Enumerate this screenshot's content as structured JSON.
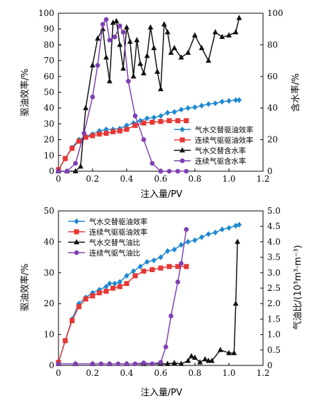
{
  "chart_data": [
    {
      "type": "line",
      "xlabel": "注入量/PV",
      "ylabel_left": "驱油效率/%",
      "ylabel_right": "含水率/%",
      "xlim": [
        0,
        1.2
      ],
      "xticks": [
        "0",
        "0.2",
        "0.4",
        "0.6",
        "0.8",
        "1.0",
        "1.2"
      ],
      "ylim_left": [
        0,
        100
      ],
      "yticks_left": [
        "0",
        "10",
        "20",
        "30",
        "40",
        "50",
        "60",
        "70",
        "80",
        "90",
        "100"
      ],
      "ylim_right": [
        0,
        100
      ],
      "yticks_right": [
        "0",
        "20",
        "40",
        "60",
        "80",
        "100"
      ],
      "legend_position": "bottom-right",
      "series": [
        {
          "name": "气水交替驱油效率",
          "axis": "left",
          "color": "#1e88d0",
          "marker": "diamond",
          "x": [
            0,
            0.04,
            0.08,
            0.12,
            0.16,
            0.2,
            0.24,
            0.28,
            0.32,
            0.36,
            0.4,
            0.44,
            0.48,
            0.52,
            0.56,
            0.6,
            0.64,
            0.68,
            0.72,
            0.76,
            0.8,
            0.84,
            0.88,
            0.92,
            0.96,
            1.0,
            1.04,
            1.06
          ],
          "y": [
            1,
            8,
            15,
            20,
            22,
            23.5,
            25.5,
            26.5,
            26.5,
            27,
            29,
            30.5,
            32,
            33.5,
            34,
            35,
            37,
            37.5,
            39,
            40,
            40.5,
            41.5,
            42.5,
            43,
            44,
            44.5,
            45,
            45
          ]
        },
        {
          "name": "连续气驱驱油效率",
          "axis": "left",
          "color": "#e53935",
          "marker": "square",
          "x": [
            0,
            0.04,
            0.08,
            0.12,
            0.16,
            0.2,
            0.24,
            0.28,
            0.32,
            0.36,
            0.4,
            0.45,
            0.5,
            0.55,
            0.6,
            0.65,
            0.7,
            0.75
          ],
          "y": [
            1,
            8,
            14.5,
            19,
            21.5,
            22.5,
            23.5,
            24,
            25,
            25.5,
            26.5,
            29,
            30.5,
            31,
            31.5,
            32,
            32,
            32
          ]
        },
        {
          "name": "气水交替含水率",
          "axis": "right",
          "color": "#111111",
          "marker": "triangle",
          "x": [
            0,
            0.05,
            0.1,
            0.13,
            0.16,
            0.2,
            0.23,
            0.26,
            0.28,
            0.3,
            0.32,
            0.34,
            0.36,
            0.38,
            0.4,
            0.42,
            0.44,
            0.46,
            0.48,
            0.5,
            0.52,
            0.54,
            0.56,
            0.58,
            0.6,
            0.62,
            0.64,
            0.66,
            0.68,
            0.72,
            0.76,
            0.8,
            0.84,
            0.88,
            0.92,
            0.96,
            1.0,
            1.04,
            1.06
          ],
          "y": [
            0,
            0,
            0,
            3,
            40,
            67,
            84,
            90,
            72,
            57,
            94,
            95,
            80,
            65,
            91,
            82,
            60,
            83,
            68,
            62,
            73,
            91,
            78,
            63,
            52,
            93,
            88,
            75,
            78,
            72,
            75,
            86,
            78,
            70,
            88,
            85,
            86,
            88,
            97
          ]
        },
        {
          "name": "连续气驱含水率",
          "axis": "right",
          "color": "#7e3fb2",
          "marker": "circle",
          "x": [
            0,
            0.05,
            0.1,
            0.15,
            0.2,
            0.23,
            0.26,
            0.28,
            0.3,
            0.33,
            0.36,
            0.38,
            0.41,
            0.45,
            0.5,
            0.55,
            0.6,
            0.65,
            0.7,
            0.75
          ],
          "y": [
            0,
            0,
            5,
            24,
            47,
            67,
            93,
            96,
            83,
            85,
            92,
            88,
            57,
            35,
            20,
            5,
            0,
            0,
            0,
            0
          ]
        }
      ]
    },
    {
      "type": "line",
      "xlabel": "注入量/PV",
      "ylabel_left": "驱油效率/%",
      "ylabel_right": "气油比/(10³m³·m⁻³)",
      "xlim": [
        0,
        1.2
      ],
      "xticks": [
        "0",
        "0.2",
        "0.4",
        "0.6",
        "0.8",
        "1.0",
        "1.2"
      ],
      "ylim_left": [
        0,
        50
      ],
      "yticks_left": [
        "0",
        "10",
        "20",
        "30",
        "40",
        "50"
      ],
      "ylim_right": [
        0,
        5
      ],
      "yticks_right": [
        "0",
        "0.5",
        "1.0",
        "1.5",
        "2.0",
        "2.5",
        "3.0",
        "3.5",
        "4.0",
        "4.5",
        "5.0"
      ],
      "legend_position": "top-left",
      "series": [
        {
          "name": "气水交替驱油效率",
          "axis": "left",
          "color": "#1e88d0",
          "marker": "diamond",
          "x": [
            0,
            0.04,
            0.08,
            0.12,
            0.16,
            0.2,
            0.24,
            0.28,
            0.3,
            0.33,
            0.36,
            0.4,
            0.44,
            0.48,
            0.52,
            0.56,
            0.6,
            0.64,
            0.68,
            0.72,
            0.76,
            0.8,
            0.84,
            0.88,
            0.92,
            0.96,
            1.0,
            1.04,
            1.06
          ],
          "y": [
            1,
            8,
            15,
            20,
            22,
            23.5,
            24.5,
            25.5,
            26.5,
            26.5,
            27,
            29,
            30.5,
            32,
            33.5,
            34,
            35,
            37,
            37.5,
            39,
            40,
            40.5,
            41.5,
            42.5,
            43,
            44,
            44.5,
            45.2,
            45.5
          ]
        },
        {
          "name": "连续气驱驱油效率",
          "axis": "left",
          "color": "#e53935",
          "marker": "square",
          "x": [
            0,
            0.04,
            0.08,
            0.12,
            0.16,
            0.2,
            0.24,
            0.28,
            0.32,
            0.36,
            0.4,
            0.45,
            0.5,
            0.55,
            0.6,
            0.65,
            0.7,
            0.75
          ],
          "y": [
            1,
            8,
            14.5,
            19,
            21.5,
            22.5,
            23.5,
            24,
            25,
            25.5,
            26.5,
            29,
            30.5,
            31,
            31.5,
            32,
            32,
            32
          ]
        },
        {
          "name": "气水交替气油比",
          "axis": "right",
          "color": "#111111",
          "marker": "triangle",
          "x": [
            0,
            0.1,
            0.2,
            0.3,
            0.4,
            0.5,
            0.6,
            0.64,
            0.68,
            0.72,
            0.76,
            0.78,
            0.8,
            0.83,
            0.86,
            0.88,
            0.9,
            0.95,
            1.0,
            1.03,
            1.04,
            1.05
          ],
          "y": [
            0.05,
            0.05,
            0.05,
            0.05,
            0.05,
            0.05,
            0.05,
            0.05,
            0.08,
            0.05,
            0.15,
            0.3,
            0.25,
            0.1,
            0.2,
            0.15,
            0.15,
            0.5,
            0.4,
            0.4,
            2.0,
            4.0
          ]
        },
        {
          "name": "连续气驱气油比",
          "axis": "right",
          "color": "#7e3fb2",
          "marker": "circle",
          "x": [
            0,
            0.1,
            0.2,
            0.25,
            0.3,
            0.35,
            0.4,
            0.45,
            0.5,
            0.55,
            0.6,
            0.63,
            0.66,
            0.7,
            0.72,
            0.75
          ],
          "y": [
            0.05,
            0.05,
            0.05,
            0.05,
            0.05,
            0.05,
            0.05,
            0.05,
            0.08,
            0.05,
            0.1,
            0.6,
            1.6,
            2.7,
            3.3,
            4.4
          ]
        }
      ]
    }
  ]
}
